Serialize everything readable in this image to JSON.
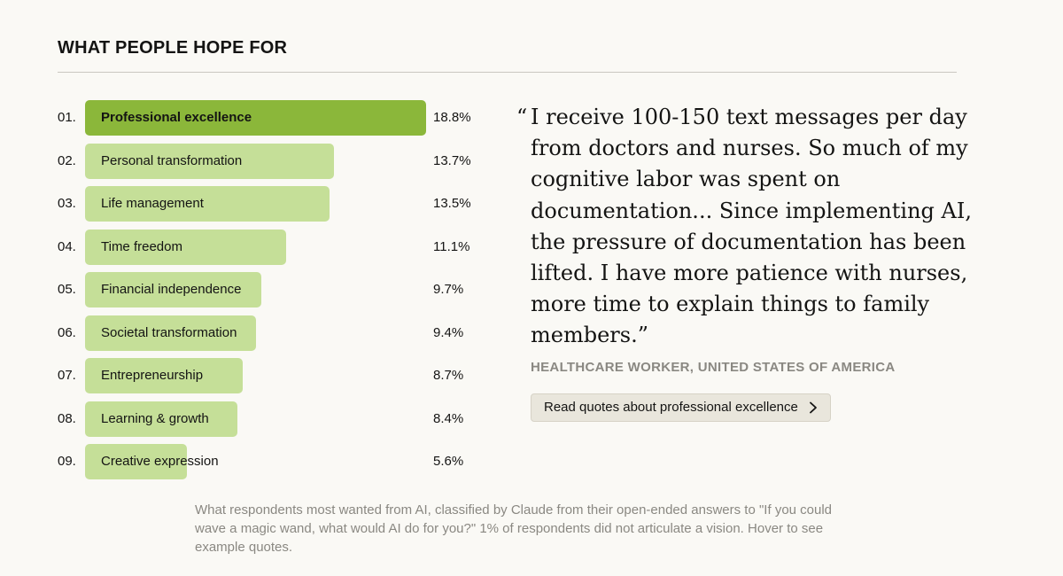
{
  "section_title": "WHAT PEOPLE HOPE FOR",
  "chart_data": {
    "type": "bar",
    "orientation": "horizontal",
    "title": "WHAT PEOPLE HOPE FOR",
    "ranks": [
      "01.",
      "02.",
      "03.",
      "04.",
      "05.",
      "06.",
      "07.",
      "08.",
      "09."
    ],
    "categories": [
      "Professional excellence",
      "Personal transformation",
      "Life management",
      "Time freedom",
      "Financial independence",
      "Societal transformation",
      "Entrepreneurship",
      "Learning & growth",
      "Creative expression"
    ],
    "values": [
      18.8,
      13.7,
      13.5,
      11.1,
      9.7,
      9.4,
      8.7,
      8.4,
      5.6
    ],
    "value_labels": [
      "18.8%",
      "13.7%",
      "13.5%",
      "11.1%",
      "9.7%",
      "9.4%",
      "8.7%",
      "8.4%",
      "5.6%"
    ],
    "unit": "%",
    "highlighted": "Professional excellence"
  },
  "colors": {
    "highlight_bar": "#8bb73a",
    "bar": "#c5df98",
    "background": "#faf9f5"
  },
  "quote": {
    "open_mark": "“",
    "lines": [
      "I receive 100-150 text messages per day",
      "from doctors and nurses. So much of my",
      "cognitive labor was spent on",
      "documentation... Since implementing AI,",
      "the pressure of documentation has been",
      "lifted. I have more patience with nurses,",
      "more time to explain things to family",
      "members.”"
    ],
    "attribution": "HEALTHCARE WORKER, UNITED STATES OF AMERICA",
    "button_label": "Read quotes about professional excellence",
    "button_icon": "chevron-right-icon"
  },
  "caption": "What respondents most wanted from AI, classified by Claude from their open-ended answers to \"If you could wave a magic wand, what would AI do for you?\" 1% of respondents did not articulate a vision. Hover to see example quotes."
}
